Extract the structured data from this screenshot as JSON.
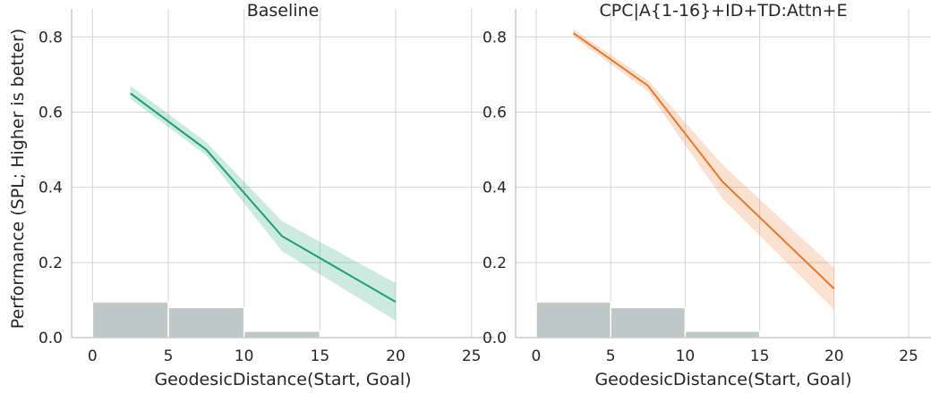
{
  "figure": {
    "shared_ylabel": "Performance (SPL; Higher is better)"
  },
  "colors": {
    "baseline": "#1b9e77",
    "cpc": "#e6782b",
    "histogram": "#bec8c6",
    "grid": "#d4d4d4"
  },
  "chart_data": [
    {
      "type": "line",
      "title": "Baseline",
      "xlabel": "GeodesicDistance(Start, Goal)",
      "ylabel": "Performance (SPL; Higher is better)",
      "xlim": [
        -1.2,
        26.2
      ],
      "ylim": [
        0.0,
        0.86
      ],
      "xticks": [
        0,
        5,
        10,
        15,
        20,
        25
      ],
      "yticks": [
        0.0,
        0.2,
        0.4,
        0.6,
        0.8
      ],
      "grid": true,
      "series": [
        {
          "color": "#1b9e77",
          "x": [
            2.5,
            7.5,
            12.5,
            20
          ],
          "y": [
            0.65,
            0.5,
            0.27,
            0.095
          ],
          "ci_low": [
            0.635,
            0.485,
            0.23,
            0.045
          ],
          "ci_high": [
            0.67,
            0.52,
            0.31,
            0.145
          ]
        }
      ],
      "histogram": {
        "bins": [
          [
            0,
            5
          ],
          [
            5,
            10
          ],
          [
            10,
            15
          ]
        ],
        "values": [
          0.095,
          0.08,
          0.017
        ]
      }
    },
    {
      "type": "line",
      "title": "CPC|A{1-16}+ID+TD:Attn+E",
      "xlabel": "GeodesicDistance(Start, Goal)",
      "ylabel": "",
      "xlim": [
        -1.2,
        26.2
      ],
      "ylim": [
        0.0,
        0.86
      ],
      "xticks": [
        0,
        5,
        10,
        15,
        20,
        25
      ],
      "yticks": [
        0.0,
        0.2,
        0.4,
        0.6,
        0.8
      ],
      "grid": true,
      "series": [
        {
          "color": "#e6782b",
          "x": [
            2.5,
            7.5,
            12.5,
            20
          ],
          "y": [
            0.81,
            0.67,
            0.415,
            0.13
          ],
          "ci_low": [
            0.8,
            0.655,
            0.37,
            0.075
          ],
          "ci_high": [
            0.82,
            0.685,
            0.46,
            0.185
          ]
        }
      ],
      "histogram": {
        "bins": [
          [
            0,
            5
          ],
          [
            5,
            10
          ],
          [
            10,
            15
          ]
        ],
        "values": [
          0.095,
          0.08,
          0.017
        ]
      }
    }
  ]
}
